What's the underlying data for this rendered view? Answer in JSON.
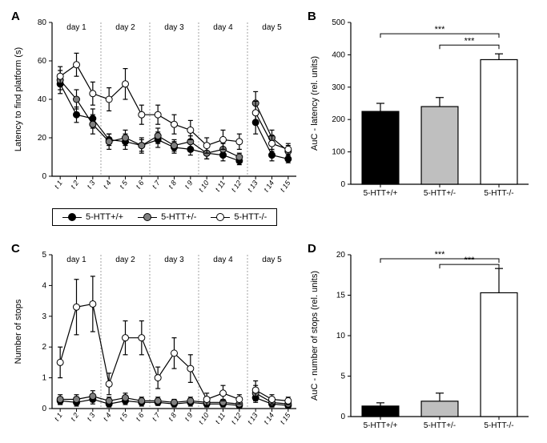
{
  "trials": [
    "t 1",
    "t 2",
    "t 3",
    "t 4",
    "t 5",
    "t 6",
    "t 7",
    "t 8",
    "t 9",
    "t 10",
    "t 11",
    "t 12",
    "t 13",
    "t 14",
    "t 15"
  ],
  "days": [
    "day 1",
    "day 2",
    "day 3",
    "day 4",
    "day 5"
  ],
  "groups": [
    {
      "key": "wt",
      "label": "5-HTT+/+",
      "color": "#000000"
    },
    {
      "key": "het",
      "label": "5-HTT+/-",
      "color": "#808080"
    },
    {
      "key": "ko",
      "label": "5-HTT-/-",
      "color": "#ffffff"
    }
  ],
  "panelA": {
    "label": "A",
    "ylabel": "Latency to find platform (s)",
    "ylim": [
      0,
      80
    ],
    "ytick_step": 20,
    "day_divisions": [
      3,
      6,
      9,
      12
    ],
    "series": {
      "wt": {
        "y": [
          48,
          32,
          30,
          19,
          18,
          16,
          19,
          15,
          14,
          12,
          11,
          8,
          28,
          11,
          9
        ],
        "err": [
          5,
          4,
          5,
          3,
          4,
          4,
          4,
          3,
          3,
          3,
          3,
          2,
          6,
          3,
          2
        ]
      },
      "het": {
        "y": [
          50,
          40,
          27,
          18,
          20,
          16,
          21,
          16,
          18,
          12,
          14,
          10,
          38,
          20,
          13
        ],
        "err": [
          5,
          5,
          5,
          4,
          4,
          3,
          4,
          3,
          3,
          3,
          3,
          2,
          6,
          4,
          3
        ]
      },
      "ko": {
        "y": [
          52,
          58,
          43,
          40,
          48,
          32,
          32,
          27,
          24,
          16,
          19,
          18,
          33,
          17,
          14
        ],
        "err": [
          5,
          6,
          6,
          6,
          8,
          5,
          5,
          5,
          5,
          4,
          5,
          4,
          6,
          4,
          3
        ]
      }
    }
  },
  "panelB": {
    "label": "B",
    "ylabel": "AuC - latency (rel. units)",
    "ylim": [
      0,
      500
    ],
    "ytick_step": 100,
    "categories": [
      "5-HTT+/+",
      "5-HTT+/-",
      "5-HTT-/-"
    ],
    "values": [
      225,
      240,
      385
    ],
    "errors": [
      25,
      28,
      18
    ],
    "colors": [
      "#000000",
      "#bfbfbf",
      "#ffffff"
    ],
    "sig": [
      {
        "from": 0,
        "to": 2,
        "y": 465,
        "label": "***"
      },
      {
        "from": 1,
        "to": 2,
        "y": 430,
        "label": "***"
      }
    ]
  },
  "panelC": {
    "label": "C",
    "ylabel": "Number of stops",
    "ylim": [
      0,
      5
    ],
    "ytick_step": 1,
    "day_divisions": [
      3,
      6,
      9,
      12
    ],
    "series": {
      "wt": {
        "y": [
          0.25,
          0.2,
          0.3,
          0.15,
          0.25,
          0.2,
          0.2,
          0.15,
          0.2,
          0.15,
          0.15,
          0.1,
          0.35,
          0.15,
          0.1
        ],
        "err": [
          0.12,
          0.12,
          0.15,
          0.1,
          0.12,
          0.12,
          0.1,
          0.1,
          0.12,
          0.1,
          0.1,
          0.08,
          0.15,
          0.1,
          0.08
        ]
      },
      "het": {
        "y": [
          0.3,
          0.3,
          0.4,
          0.25,
          0.35,
          0.25,
          0.25,
          0.2,
          0.25,
          0.2,
          0.2,
          0.15,
          0.5,
          0.2,
          0.15
        ],
        "err": [
          0.15,
          0.15,
          0.18,
          0.12,
          0.15,
          0.12,
          0.12,
          0.1,
          0.12,
          0.1,
          0.1,
          0.1,
          0.25,
          0.12,
          0.1
        ]
      },
      "ko": {
        "y": [
          1.5,
          3.3,
          3.4,
          0.8,
          2.3,
          2.3,
          1.0,
          1.8,
          1.3,
          0.3,
          0.5,
          0.3,
          0.6,
          0.3,
          0.25
        ],
        "err": [
          0.5,
          0.9,
          0.9,
          0.35,
          0.55,
          0.55,
          0.35,
          0.5,
          0.45,
          0.2,
          0.25,
          0.15,
          0.3,
          0.15,
          0.12
        ]
      }
    }
  },
  "panelD": {
    "label": "D",
    "ylabel": "AuC - number of stops (rel. units)",
    "ylim": [
      0,
      20
    ],
    "ytick_step": 5,
    "categories": [
      "5-HTT+/+",
      "5-HTT+/-",
      "5-HTT-/-"
    ],
    "values": [
      1.3,
      1.9,
      15.3
    ],
    "errors": [
      0.4,
      1.0,
      3.0
    ],
    "colors": [
      "#000000",
      "#bfbfbf",
      "#ffffff"
    ],
    "sig": [
      {
        "from": 0,
        "to": 2,
        "y": 19.5,
        "label": "***"
      },
      {
        "from": 1,
        "to": 2,
        "y": 18.8,
        "label": "***"
      }
    ]
  },
  "style": {
    "marker_radius": 4,
    "line_width": 1.2,
    "error_cap": 3,
    "background": "#ffffff",
    "axis_color": "#000000"
  }
}
